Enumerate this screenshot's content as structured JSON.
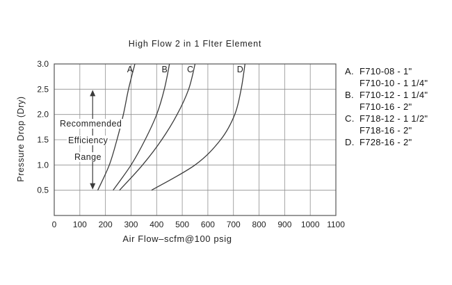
{
  "chart_data": {
    "type": "line",
    "title": "High Flow 2 in 1 Flter Element",
    "xlabel": "Air Flow–scfm@100 psig",
    "ylabel": "Pressure Drop (Dry)",
    "xlim": [
      0,
      1100
    ],
    "ylim": [
      0,
      3.0
    ],
    "xticks": [
      0,
      100,
      200,
      300,
      400,
      500,
      600,
      700,
      800,
      900,
      1000,
      1100
    ],
    "yticks": [
      0.5,
      1.0,
      1.5,
      2.0,
      2.5,
      3.0
    ],
    "grid": true,
    "legend_position": "right",
    "series": [
      {
        "name": "A",
        "x": [
          170,
          215,
          245,
          270,
          290,
          315
        ],
        "y": [
          0.5,
          1.0,
          1.5,
          2.0,
          2.5,
          3.0
        ]
      },
      {
        "name": "B",
        "x": [
          230,
          300,
          355,
          400,
          430,
          450
        ],
        "y": [
          0.5,
          1.0,
          1.5,
          2.0,
          2.5,
          3.0
        ]
      },
      {
        "name": "C",
        "x": [
          255,
          345,
          420,
          480,
          525,
          550
        ],
        "y": [
          0.5,
          1.0,
          1.5,
          2.0,
          2.5,
          3.0
        ]
      },
      {
        "name": "D",
        "x": [
          380,
          550,
          650,
          705,
          730,
          745
        ],
        "y": [
          0.5,
          1.0,
          1.5,
          2.0,
          2.5,
          3.0
        ]
      }
    ],
    "annotation": {
      "lines": [
        "Recommended",
        "Efficiency",
        "Range"
      ],
      "arrow": {
        "x": 150,
        "y_from": 0.5,
        "y_to": 2.5
      }
    },
    "colors": {
      "curve": "#3a3a3a",
      "grid": "#8f8f8f",
      "border": "#555555",
      "text": "#222222"
    }
  },
  "legend": {
    "items": [
      {
        "prefix": "A.",
        "text": "F710-08 - 1\""
      },
      {
        "prefix": "",
        "text": "F710-10 - 1 1/4\""
      },
      {
        "prefix": "B.",
        "text": "F710-12 - 1 1/4\""
      },
      {
        "prefix": "",
        "text": "F710-16 - 2\""
      },
      {
        "prefix": "C.",
        "text": "F718-12 - 1 1/2\""
      },
      {
        "prefix": "",
        "text": "F718-16 - 2\""
      },
      {
        "prefix": "D.",
        "text": "F728-16 - 2\""
      }
    ]
  }
}
